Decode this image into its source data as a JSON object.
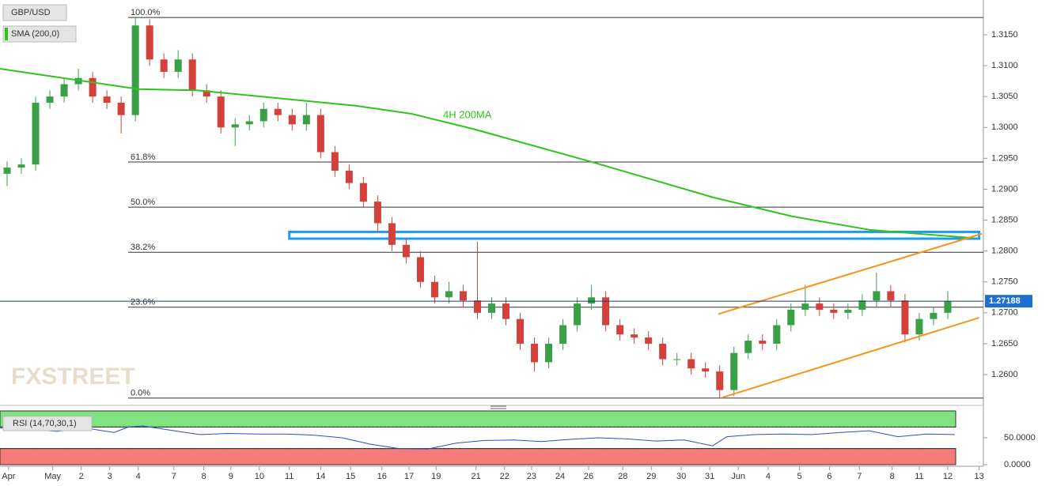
{
  "chart_data": [
    {
      "type": "candlestick",
      "title": "GBP/USD",
      "watermark": "FXSTREET",
      "annotation": "4H 200MA",
      "xlim": [
        0,
        69
      ],
      "xticks": [
        {
          "value": 0.6,
          "label": "Apr"
        },
        {
          "value": 3.7,
          "label": "May"
        },
        {
          "value": 5.7,
          "label": "2"
        },
        {
          "value": 7.7,
          "label": "3"
        },
        {
          "value": 9.7,
          "label": "4"
        },
        {
          "value": 12.2,
          "label": "7"
        },
        {
          "value": 14.3,
          "label": "8"
        },
        {
          "value": 16.2,
          "label": "9"
        },
        {
          "value": 18.2,
          "label": "10"
        },
        {
          "value": 20.3,
          "label": "11"
        },
        {
          "value": 22.5,
          "label": "14"
        },
        {
          "value": 24.6,
          "label": "15"
        },
        {
          "value": 26.8,
          "label": "16"
        },
        {
          "value": 28.7,
          "label": "17"
        },
        {
          "value": 30.6,
          "label": "19"
        },
        {
          "value": 33.4,
          "label": "21"
        },
        {
          "value": 35.4,
          "label": "22"
        },
        {
          "value": 37.3,
          "label": "23"
        },
        {
          "value": 39.3,
          "label": "24"
        },
        {
          "value": 41.3,
          "label": "26"
        },
        {
          "value": 43.7,
          "label": "28"
        },
        {
          "value": 45.7,
          "label": "29"
        },
        {
          "value": 47.8,
          "label": "30"
        },
        {
          "value": 49.8,
          "label": "31"
        },
        {
          "value": 51.8,
          "label": "Jun"
        },
        {
          "value": 53.9,
          "label": "4"
        },
        {
          "value": 56.1,
          "label": "5"
        },
        {
          "value": 58.2,
          "label": "6"
        },
        {
          "value": 60.3,
          "label": "7"
        },
        {
          "value": 62.6,
          "label": "8"
        },
        {
          "value": 64.5,
          "label": "11"
        },
        {
          "value": 66.5,
          "label": "12"
        },
        {
          "value": 68.7,
          "label": "13"
        }
      ],
      "ylim": [
        1.2554,
        1.3196
      ],
      "yticks": [
        {
          "value": 1.315,
          "label": "1.3150"
        },
        {
          "value": 1.31,
          "label": "1.3100"
        },
        {
          "value": 1.305,
          "label": "1.3050"
        },
        {
          "value": 1.3,
          "label": "1.3000"
        },
        {
          "value": 1.295,
          "label": "1.2950"
        },
        {
          "value": 1.29,
          "label": "1.2900"
        },
        {
          "value": 1.285,
          "label": "1.2850"
        },
        {
          "value": 1.28,
          "label": "1.2800"
        },
        {
          "value": 1.275,
          "label": "1.2750"
        },
        {
          "value": 1.27,
          "label": "1.2700"
        },
        {
          "value": 1.265,
          "label": "1.2650"
        },
        {
          "value": 1.26,
          "label": "1.2600"
        }
      ],
      "up_color": "#3aa048",
      "down_color": "#d4403a",
      "open": [
        1.2925,
        1.2935,
        1.294,
        1.304,
        1.305,
        1.307,
        1.308,
        1.305,
        1.304,
        1.302,
        1.3165,
        1.311,
        1.309,
        1.311,
        1.306,
        1.305,
        1.3,
        1.3005,
        1.301,
        1.303,
        1.302,
        1.3005,
        1.302,
        1.296,
        1.293,
        1.291,
        1.288,
        1.2845,
        1.281,
        1.279,
        1.275,
        1.2725,
        1.2735,
        1.272,
        1.27,
        1.2715,
        1.269,
        1.265,
        1.262,
        1.265,
        1.268,
        1.2715,
        1.2725,
        1.268,
        1.2665,
        1.266,
        1.265,
        1.2625,
        1.2625,
        1.261,
        1.2605,
        1.2575,
        1.2635,
        1.2655,
        1.265,
        1.268,
        1.2705,
        1.2715,
        1.2705,
        1.27,
        1.2705,
        1.272,
        1.2735,
        1.272,
        1.2665,
        1.269,
        1.27
      ],
      "high": [
        1.2945,
        1.295,
        1.305,
        1.306,
        1.308,
        1.3095,
        1.309,
        1.306,
        1.305,
        1.3178,
        1.3175,
        1.312,
        1.3125,
        1.312,
        1.307,
        1.306,
        1.3015,
        1.302,
        1.304,
        1.304,
        1.303,
        1.304,
        1.303,
        1.297,
        1.294,
        1.292,
        1.289,
        1.2855,
        1.282,
        1.28,
        1.276,
        1.275,
        1.2745,
        1.2815,
        1.2725,
        1.2725,
        1.27,
        1.266,
        1.266,
        1.269,
        1.2725,
        1.2745,
        1.2735,
        1.269,
        1.2675,
        1.267,
        1.266,
        1.2635,
        1.2635,
        1.262,
        1.2615,
        1.2645,
        1.2665,
        1.2665,
        1.269,
        1.2715,
        1.2745,
        1.2725,
        1.2715,
        1.2715,
        1.273,
        1.2765,
        1.2745,
        1.273,
        1.27,
        1.271,
        1.2735
      ],
      "low": [
        1.2905,
        1.2925,
        1.293,
        1.303,
        1.304,
        1.306,
        1.304,
        1.303,
        1.299,
        1.301,
        1.31,
        1.308,
        1.308,
        1.305,
        1.304,
        1.299,
        1.297,
        1.2995,
        1.3,
        1.301,
        1.2995,
        1.2995,
        1.295,
        1.292,
        1.29,
        1.287,
        1.283,
        1.28,
        1.278,
        1.274,
        1.2715,
        1.2715,
        1.271,
        1.269,
        1.269,
        1.268,
        1.264,
        1.2605,
        1.261,
        1.264,
        1.267,
        1.2705,
        1.267,
        1.2655,
        1.265,
        1.264,
        1.2615,
        1.2615,
        1.26,
        1.2595,
        1.2562,
        1.2565,
        1.2625,
        1.264,
        1.264,
        1.267,
        1.2695,
        1.2695,
        1.269,
        1.269,
        1.2695,
        1.271,
        1.271,
        1.2652,
        1.2655,
        1.268,
        1.269
      ],
      "close": [
        1.2935,
        1.294,
        1.304,
        1.305,
        1.307,
        1.308,
        1.305,
        1.304,
        1.302,
        1.3165,
        1.311,
        1.309,
        1.311,
        1.306,
        1.305,
        1.3,
        1.3005,
        1.301,
        1.303,
        1.302,
        1.3005,
        1.302,
        1.296,
        1.293,
        1.291,
        1.288,
        1.2845,
        1.281,
        1.279,
        1.275,
        1.2725,
        1.2735,
        1.272,
        1.27,
        1.2715,
        1.269,
        1.265,
        1.262,
        1.265,
        1.268,
        1.2715,
        1.2725,
        1.268,
        1.2665,
        1.266,
        1.265,
        1.2625,
        1.2625,
        1.261,
        1.2605,
        1.2575,
        1.2635,
        1.2655,
        1.265,
        1.268,
        1.2705,
        1.2715,
        1.2705,
        1.27,
        1.2705,
        1.272,
        1.2735,
        1.272,
        1.2665,
        1.269,
        1.27,
        1.2719
      ],
      "series": [
        {
          "name": "SMA (200,0)",
          "color": "#2ec41a",
          "x": [
            0,
            9.7,
            13.9,
            25,
            28.9,
            33.3,
            41.7,
            50,
            55.6,
            61.1,
            68.3
          ],
          "values": [
            1.3095,
            1.3062,
            1.306,
            1.3035,
            1.3022,
            1.2997,
            1.2943,
            1.2887,
            1.2856,
            1.2834,
            1.2821
          ]
        }
      ],
      "fib_levels": [
        {
          "label": "100.0%",
          "value": 1.3178
        },
        {
          "label": "61.8%",
          "value": 1.2944
        },
        {
          "label": "50.0%",
          "value": 1.2871
        },
        {
          "label": "38.2%",
          "value": 1.2798
        },
        {
          "label": "23.6%",
          "value": 1.2709
        },
        {
          "label": "0.0%",
          "value": 1.2562
        }
      ],
      "zone": {
        "x": [
          20.3,
          68.7
        ],
        "y": [
          1.282,
          1.2831
        ],
        "color": "#1f9bf0"
      },
      "trendlines": [
        {
          "x": [
            50.4,
            68.9
          ],
          "values": [
            1.2698,
            1.2828
          ],
          "color": "#f7941d"
        },
        {
          "x": [
            50.7,
            68.7
          ],
          "values": [
            1.2563,
            1.2692
          ],
          "color": "#f7941d"
        }
      ],
      "last_price": 1.27188,
      "last_price_color": "#1e6fd0"
    },
    {
      "type": "line",
      "title": "RSI (14,70,30,1)",
      "xlim": [
        0,
        69
      ],
      "ylim": [
        0,
        100
      ],
      "yticks": [
        {
          "value": 50,
          "label": "50.0000"
        },
        {
          "value": 0,
          "label": "0.0000"
        }
      ],
      "bands": [
        {
          "from": 70,
          "to": 100,
          "color": "#7fe37f"
        },
        {
          "from": 0,
          "to": 30,
          "color": "#f57b7b"
        }
      ],
      "series": [
        {
          "name": "RSI",
          "color": "#2a4fc8",
          "x": [
            0,
            2,
            4,
            6,
            8,
            9,
            10,
            12,
            14,
            16,
            18,
            20,
            22,
            24,
            26,
            28,
            30,
            32,
            34,
            36,
            38,
            40,
            42,
            44,
            46,
            48,
            50,
            51,
            53,
            55,
            57,
            59,
            61,
            63,
            65,
            67
          ],
          "values": [
            68,
            66,
            62,
            68,
            60,
            70,
            72,
            64,
            56,
            58,
            57,
            57,
            55,
            50,
            38,
            30,
            29,
            40,
            45,
            46,
            43,
            47,
            50,
            48,
            44,
            46,
            35,
            52,
            56,
            57,
            56,
            60,
            63,
            52,
            57,
            56
          ]
        }
      ]
    }
  ]
}
